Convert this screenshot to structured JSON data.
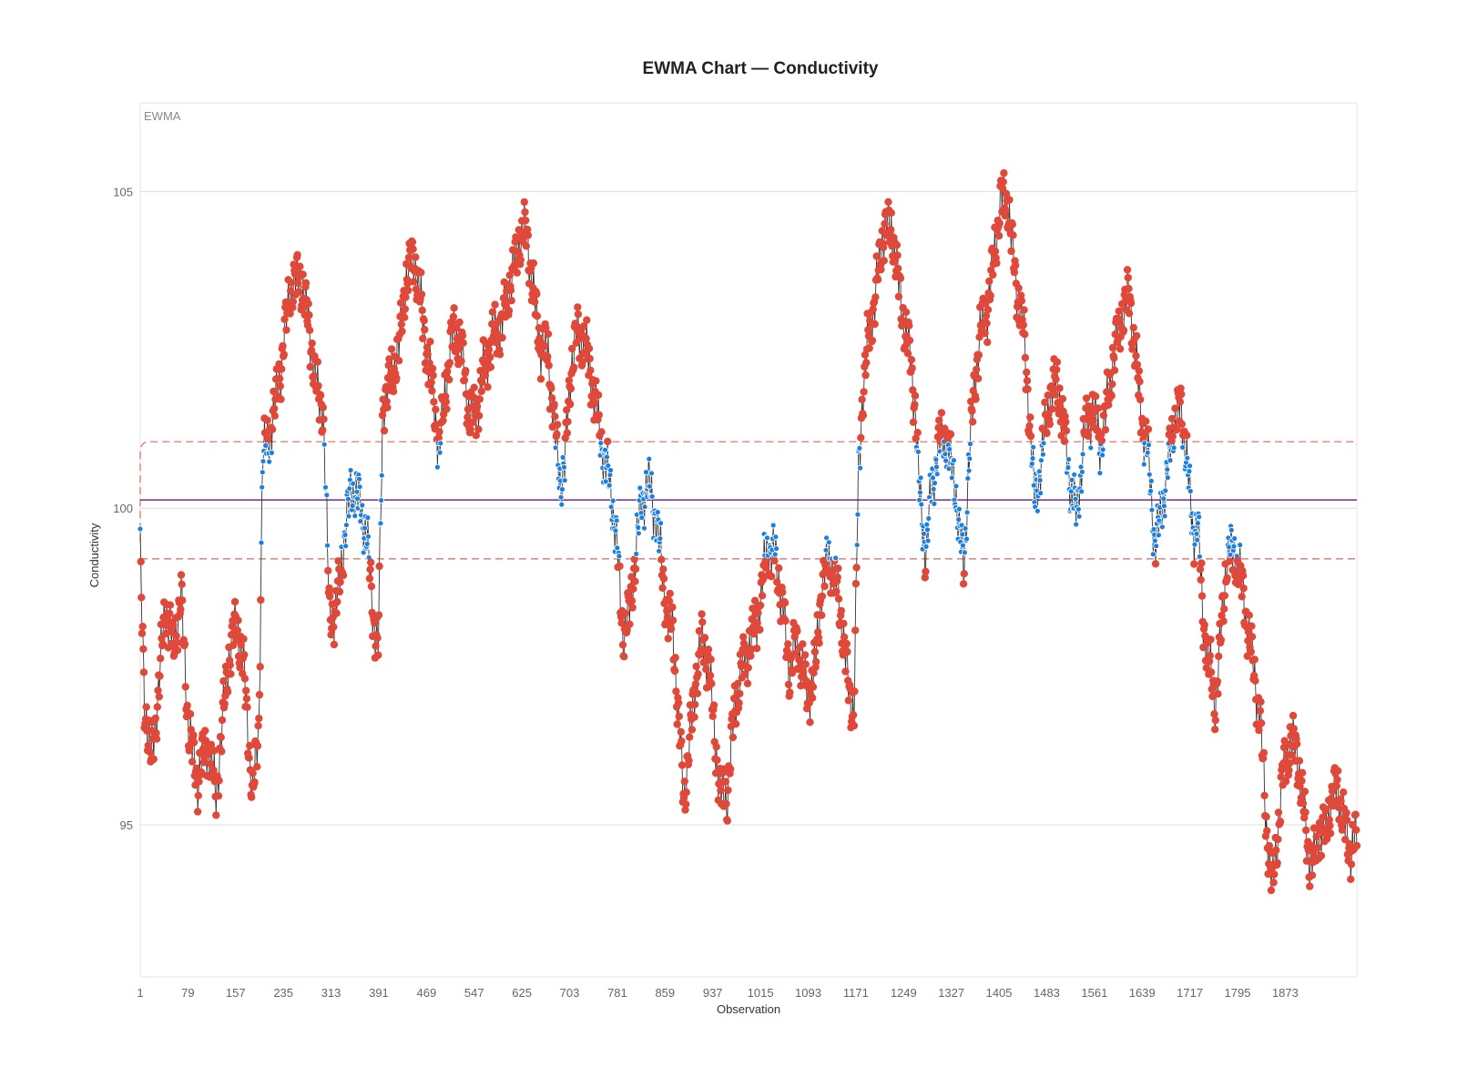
{
  "chart_data": {
    "type": "line",
    "title": "EWMA Chart — Conductivity",
    "panel_label": "EWMA",
    "xlabel": "Observation",
    "ylabel": "Conductivity",
    "x_range": [
      1,
      1990
    ],
    "xlim": [
      1,
      1990
    ],
    "ylim": [
      92.6,
      106.4
    ],
    "x_ticks": [
      1,
      79,
      157,
      235,
      313,
      391,
      469,
      547,
      625,
      703,
      781,
      859,
      937,
      1015,
      1093,
      1171,
      1249,
      1327,
      1405,
      1483,
      1561,
      1639,
      1717,
      1795,
      1873
    ],
    "y_ticks": [
      95,
      100,
      105
    ],
    "grid": "horizontal",
    "center_line": 100.13,
    "ucl": 101.05,
    "lcl": 99.2,
    "colors": {
      "in_control": "#1a7fe0",
      "out_of_control": "#e0493a",
      "line": "#333333",
      "center": "#7a3d8f",
      "limits": "#d96a5a"
    },
    "series": [
      {
        "name": "EWMA",
        "knots": [
          [
            1,
            99.2
          ],
          [
            8,
            97.0
          ],
          [
            18,
            96.0
          ],
          [
            30,
            97.0
          ],
          [
            42,
            98.5
          ],
          [
            55,
            97.8
          ],
          [
            68,
            98.6
          ],
          [
            80,
            96.5
          ],
          [
            95,
            95.7
          ],
          [
            110,
            96.3
          ],
          [
            125,
            95.5
          ],
          [
            145,
            97.6
          ],
          [
            158,
            98.2
          ],
          [
            170,
            97.5
          ],
          [
            185,
            95.4
          ],
          [
            195,
            96.6
          ],
          [
            201,
            100.8
          ],
          [
            210,
            101.1
          ],
          [
            220,
            101.5
          ],
          [
            232,
            102.3
          ],
          [
            245,
            103.4
          ],
          [
            262,
            103.7
          ],
          [
            278,
            102.8
          ],
          [
            290,
            101.8
          ],
          [
            300,
            101.6
          ],
          [
            310,
            98.4
          ],
          [
            320,
            98.3
          ],
          [
            332,
            99.3
          ],
          [
            345,
            100.3
          ],
          [
            360,
            100.1
          ],
          [
            372,
            99.5
          ],
          [
            382,
            98.3
          ],
          [
            390,
            97.8
          ],
          [
            398,
            101.7
          ],
          [
            410,
            102.0
          ],
          [
            425,
            102.6
          ],
          [
            435,
            103.6
          ],
          [
            448,
            104.0
          ],
          [
            460,
            103.2
          ],
          [
            472,
            102.3
          ],
          [
            480,
            101.8
          ],
          [
            490,
            100.9
          ],
          [
            500,
            101.9
          ],
          [
            512,
            102.8
          ],
          [
            525,
            102.6
          ],
          [
            540,
            101.4
          ],
          [
            552,
            101.6
          ],
          [
            565,
            102.3
          ],
          [
            578,
            102.7
          ],
          [
            592,
            102.9
          ],
          [
            605,
            103.5
          ],
          [
            620,
            104.2
          ],
          [
            632,
            104.4
          ],
          [
            645,
            103.3
          ],
          [
            655,
            102.6
          ],
          [
            668,
            102.4
          ],
          [
            678,
            101.3
          ],
          [
            688,
            100.4
          ],
          [
            695,
            100.7
          ],
          [
            705,
            102.2
          ],
          [
            715,
            102.8
          ],
          [
            728,
            102.6
          ],
          [
            740,
            102.0
          ],
          [
            750,
            101.3
          ],
          [
            760,
            100.8
          ],
          [
            770,
            100.3
          ],
          [
            780,
            99.5
          ],
          [
            790,
            98.0
          ],
          [
            800,
            98.3
          ],
          [
            810,
            99.2
          ],
          [
            820,
            100.1
          ],
          [
            832,
            100.4
          ],
          [
            845,
            99.8
          ],
          [
            855,
            99.0
          ],
          [
            862,
            98.3
          ],
          [
            872,
            98.1
          ],
          [
            880,
            96.8
          ],
          [
            890,
            95.4
          ],
          [
            900,
            96.4
          ],
          [
            910,
            97.4
          ],
          [
            920,
            97.9
          ],
          [
            930,
            97.6
          ],
          [
            940,
            96.4
          ],
          [
            950,
            95.5
          ],
          [
            960,
            95.4
          ],
          [
            972,
            96.8
          ],
          [
            985,
            97.5
          ],
          [
            1000,
            97.9
          ],
          [
            1015,
            98.5
          ],
          [
            1025,
            99.4
          ],
          [
            1040,
            99.2
          ],
          [
            1052,
            98.4
          ],
          [
            1062,
            97.4
          ],
          [
            1072,
            97.9
          ],
          [
            1082,
            97.6
          ],
          [
            1092,
            97.0
          ],
          [
            1105,
            97.5
          ],
          [
            1115,
            98.8
          ],
          [
            1128,
            99.2
          ],
          [
            1140,
            98.8
          ],
          [
            1150,
            98.0
          ],
          [
            1160,
            97.1
          ],
          [
            1168,
            96.8
          ],
          [
            1175,
            100.5
          ],
          [
            1182,
            101.8
          ],
          [
            1192,
            102.7
          ],
          [
            1205,
            103.5
          ],
          [
            1218,
            104.5
          ],
          [
            1232,
            104.3
          ],
          [
            1245,
            103.2
          ],
          [
            1258,
            102.5
          ],
          [
            1268,
            101.6
          ],
          [
            1275,
            100.2
          ],
          [
            1285,
            99.3
          ],
          [
            1292,
            100.0
          ],
          [
            1305,
            101.0
          ],
          [
            1318,
            101.1
          ],
          [
            1332,
            100.5
          ],
          [
            1340,
            99.6
          ],
          [
            1348,
            99.1
          ],
          [
            1355,
            100.6
          ],
          [
            1365,
            102.0
          ],
          [
            1375,
            102.8
          ],
          [
            1385,
            103.1
          ],
          [
            1395,
            103.8
          ],
          [
            1408,
            104.9
          ],
          [
            1420,
            104.8
          ],
          [
            1432,
            103.6
          ],
          [
            1445,
            102.8
          ],
          [
            1455,
            101.4
          ],
          [
            1463,
            100.1
          ],
          [
            1475,
            100.8
          ],
          [
            1488,
            101.8
          ],
          [
            1500,
            102.0
          ],
          [
            1512,
            101.2
          ],
          [
            1522,
            100.3
          ],
          [
            1532,
            99.9
          ],
          [
            1545,
            101.2
          ],
          [
            1558,
            101.6
          ],
          [
            1570,
            101.0
          ],
          [
            1580,
            101.5
          ],
          [
            1592,
            102.4
          ],
          [
            1605,
            103.0
          ],
          [
            1618,
            103.4
          ],
          [
            1630,
            102.2
          ],
          [
            1640,
            101.3
          ],
          [
            1650,
            100.7
          ],
          [
            1660,
            99.4
          ],
          [
            1670,
            99.9
          ],
          [
            1680,
            100.6
          ],
          [
            1690,
            101.3
          ],
          [
            1702,
            101.6
          ],
          [
            1712,
            100.8
          ],
          [
            1722,
            99.6
          ],
          [
            1730,
            99.8
          ],
          [
            1738,
            98.3
          ],
          [
            1748,
            97.6
          ],
          [
            1758,
            96.9
          ],
          [
            1768,
            98.0
          ],
          [
            1778,
            99.3
          ],
          [
            1790,
            99.3
          ],
          [
            1800,
            98.9
          ],
          [
            1812,
            98.1
          ],
          [
            1822,
            97.4
          ],
          [
            1832,
            96.7
          ],
          [
            1842,
            95.0
          ],
          [
            1852,
            94.0
          ],
          [
            1860,
            94.8
          ],
          [
            1870,
            95.9
          ],
          [
            1882,
            96.3
          ],
          [
            1892,
            96.2
          ],
          [
            1902,
            95.3
          ],
          [
            1912,
            94.5
          ],
          [
            1920,
            94.4
          ],
          [
            1930,
            95.0
          ],
          [
            1938,
            94.8
          ],
          [
            1948,
            95.4
          ],
          [
            1958,
            95.6
          ],
          [
            1968,
            95.1
          ],
          [
            1978,
            94.6
          ],
          [
            1990,
            94.8
          ]
        ]
      }
    ]
  }
}
